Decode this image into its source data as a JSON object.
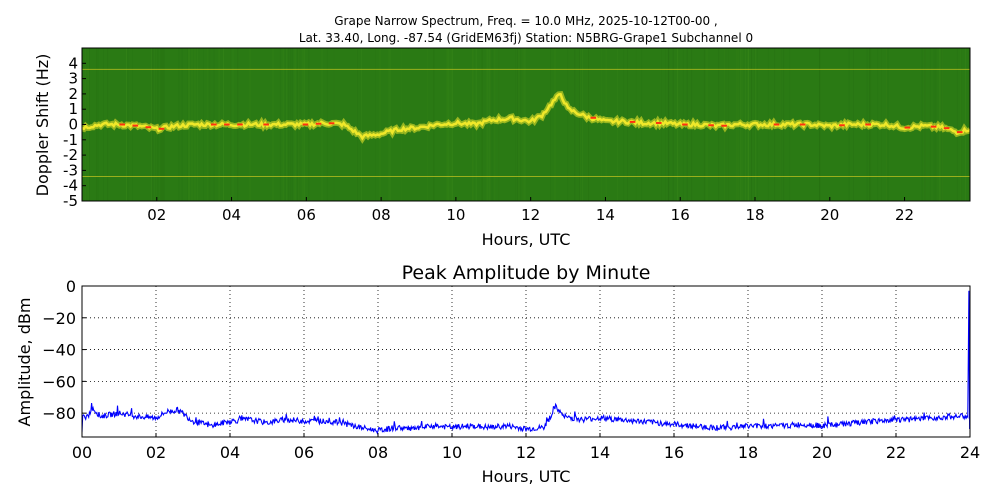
{
  "chart_data": [
    {
      "type": "heatmap",
      "title_line1": "Grape Narrow Spectrum, Freq. = 10.0 MHz, 2025-10-12T00-00 ,",
      "title_line2": "Lat.  33.40, Long. -87.54 (GridEM63fj) Station: N5BRG-Grape1 Subchannel 0",
      "xlabel": "Hours, UTC",
      "ylabel": "Doppler Shift (Hz)",
      "xlim": [
        0,
        23.75
      ],
      "ylim": [
        -5,
        5
      ],
      "xticks": [
        "02",
        "04",
        "06",
        "08",
        "10",
        "12",
        "14",
        "16",
        "18",
        "20",
        "22"
      ],
      "yticks": [
        "4",
        "3",
        "2",
        "1",
        "0",
        "-1",
        "-2",
        "-3",
        "-4",
        "-5"
      ],
      "colors": {
        "background": "#2a7a14",
        "trace": "#f0e82a",
        "peak": "#ff3010"
      },
      "doppler_trace": {
        "x": [
          0,
          0.5,
          1,
          1.5,
          2,
          2.5,
          3,
          3.5,
          4,
          4.5,
          5,
          5.5,
          6,
          6.5,
          7,
          7.5,
          8,
          8.5,
          9,
          9.5,
          10,
          10.5,
          11,
          11.5,
          12,
          12.3,
          12.6,
          12.8,
          13,
          13.5,
          14,
          14.5,
          15,
          15.5,
          16,
          16.5,
          17,
          17.5,
          18,
          18.5,
          19,
          19.5,
          20,
          20.5,
          21,
          21.5,
          22,
          22.5,
          23,
          23.4,
          23.75
        ],
        "y": [
          -0.2,
          0,
          0,
          -0.1,
          -0.3,
          -0.1,
          0,
          0,
          0,
          0,
          0,
          0,
          0,
          0.1,
          0,
          -0.8,
          -0.6,
          -0.3,
          -0.2,
          0,
          0.1,
          0,
          0.3,
          0.4,
          0.2,
          0.6,
          1.5,
          2.0,
          1.0,
          0.5,
          0.2,
          0.2,
          0.1,
          0.1,
          0,
          0,
          -0.1,
          0,
          0,
          0,
          0,
          0,
          -0.1,
          0,
          0,
          0,
          -0.2,
          -0.1,
          -0.2,
          -0.5,
          -0.3
        ]
      },
      "horizontal_lines_hz": [
        3.6,
        -3.4
      ]
    },
    {
      "type": "line",
      "title": "Peak Amplitude by Minute",
      "xlabel": "Hours, UTC",
      "ylabel": "Amplitude, dBm",
      "xlim": [
        0,
        24
      ],
      "ylim": [
        -95,
        0
      ],
      "grid": true,
      "xticks": [
        "00",
        "02",
        "04",
        "06",
        "08",
        "10",
        "12",
        "14",
        "16",
        "18",
        "20",
        "22",
        "24"
      ],
      "yticks": [
        "0",
        "−20",
        "−40",
        "−60",
        "−80"
      ],
      "colors": {
        "line": "#0000ff"
      },
      "series": [
        {
          "x": [
            0,
            0.1,
            0.3,
            0.5,
            1,
            1.5,
            2,
            2.3,
            2.6,
            3,
            3.5,
            4,
            4.5,
            5,
            5.5,
            6,
            6.5,
            7,
            7.5,
            8,
            8.5,
            9,
            9.5,
            10,
            10.5,
            11,
            11.5,
            12,
            12.5,
            12.8,
            13,
            13.5,
            14,
            14.5,
            15,
            15.5,
            16,
            16.5,
            17,
            17.5,
            18,
            18.5,
            19,
            19.5,
            20,
            20.5,
            21,
            21.5,
            22,
            22.5,
            23,
            23.5,
            23.9
          ],
          "y": [
            -80,
            -84,
            -77,
            -82,
            -80,
            -82,
            -83,
            -79,
            -78,
            -85,
            -88,
            -85,
            -84,
            -86,
            -84,
            -85,
            -85,
            -86,
            -89,
            -91,
            -89,
            -90,
            -88,
            -89,
            -88,
            -89,
            -88,
            -90,
            -89,
            -76,
            -82,
            -84,
            -83,
            -84,
            -85,
            -86,
            -87,
            -88,
            -89,
            -89,
            -88,
            -88,
            -88,
            -87,
            -88,
            -87,
            -86,
            -85,
            -84,
            -84,
            -83,
            -82,
            -82
          ]
        }
      ]
    }
  ]
}
